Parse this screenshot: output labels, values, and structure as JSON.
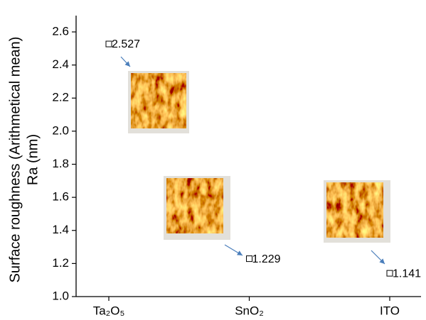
{
  "chart_data": {
    "type": "scatter",
    "ylabel": [
      "Surface roughness (Arithmetical mean)",
      "Ra (nm)"
    ],
    "categories": [
      "Ta₂O₅",
      "SnO₂",
      "ITO"
    ],
    "values": [
      2.527,
      1.229,
      1.141
    ],
    "color": "#000000",
    "ylim": [
      1.0,
      2.66
    ],
    "yticks": [
      {
        "value": 1.0,
        "label": "1.0"
      },
      {
        "value": 1.2,
        "label": "1.2"
      },
      {
        "value": 1.4,
        "label": "1.4"
      },
      {
        "value": 1.6,
        "label": "1.6"
      },
      {
        "value": 1.8,
        "label": "1.8"
      },
      {
        "value": 2.0,
        "label": "2.0"
      },
      {
        "value": 2.2,
        "label": "2.2"
      },
      {
        "value": 2.4,
        "label": "2.4"
      },
      {
        "value": 2.6,
        "label": "2.6"
      }
    ],
    "grid": false
  }
}
